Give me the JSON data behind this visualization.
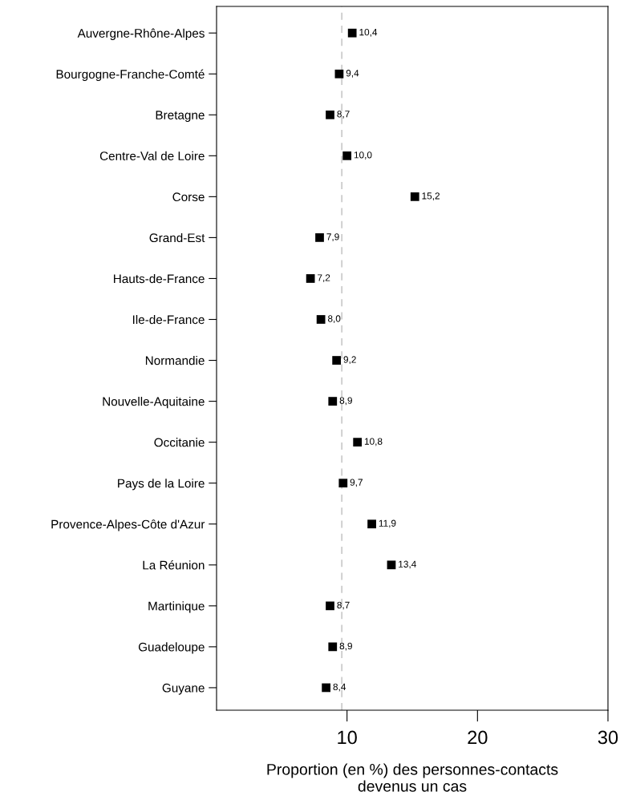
{
  "chart_data": {
    "type": "scatter",
    "orientation": "horizontal",
    "xlabel": "Proportion (en %) des personnes-contacts\ndevenus un cas",
    "categories": [
      "Auvergne-Rhône-Alpes",
      "Bourgogne-Franche-Comté",
      "Bretagne",
      "Centre-Val de Loire",
      "Corse",
      "Grand-Est",
      "Hauts-de-France",
      "Ile-de-France",
      "Normandie",
      "Nouvelle-Aquitaine",
      "Occitanie",
      "Pays de la Loire",
      "Provence-Alpes-Côte d'Azur",
      "La Réunion",
      "Martinique",
      "Guadeloupe",
      "Guyane"
    ],
    "values": [
      10.4,
      9.4,
      8.7,
      10.0,
      15.2,
      7.9,
      7.2,
      8.0,
      9.2,
      8.9,
      10.8,
      9.7,
      11.9,
      13.4,
      8.7,
      8.9,
      8.4
    ],
    "value_labels": [
      "10,4",
      "9,4",
      "8,7",
      "10,0",
      "15,2",
      "7,9",
      "7,2",
      "8,0",
      "9,2",
      "8,9",
      "10,8",
      "9,7",
      "11,9",
      "13,4",
      "8,7",
      "8,9",
      "8,4"
    ],
    "color": "#000000",
    "marker": "square",
    "xlim": [
      0,
      30
    ],
    "xticks": [
      10,
      20,
      30
    ],
    "ref_lines": [
      {
        "axis": "x",
        "value": 9.6,
        "color": "#cccccc",
        "line_style": "dashed"
      }
    ],
    "grid": false,
    "legend": false
  }
}
